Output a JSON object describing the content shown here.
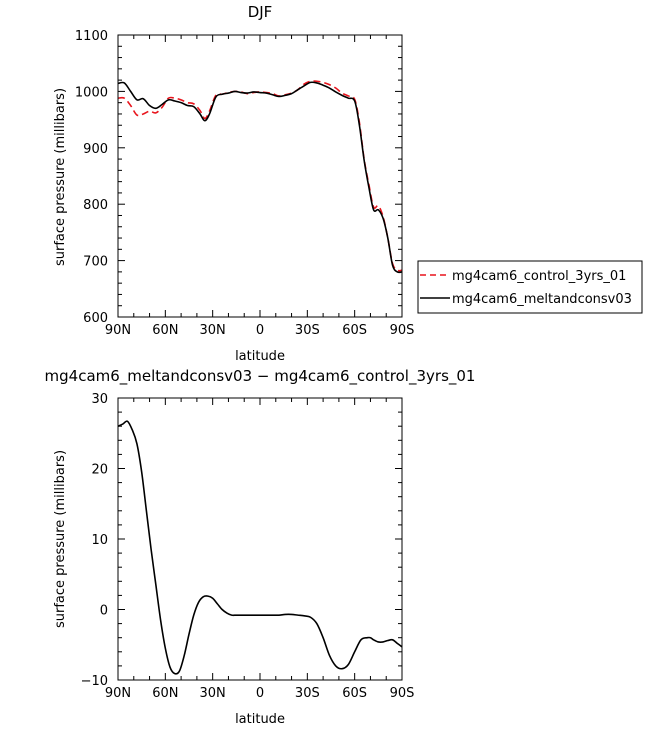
{
  "chart_data": [
    {
      "type": "line",
      "title": "DJF",
      "xlabel": "latitude",
      "ylabel": "surface pressure (millibars)",
      "xlim": [
        90,
        -90
      ],
      "ylim": [
        600,
        1100
      ],
      "xticks": [
        90,
        60,
        30,
        0,
        -30,
        -60,
        -90
      ],
      "xtick_labels": [
        "90N",
        "60N",
        "30N",
        "0",
        "30S",
        "60S",
        "90S"
      ],
      "yticks": [
        600,
        700,
        800,
        900,
        1000,
        1100
      ],
      "ytick_labels": [
        "600",
        "700",
        "800",
        "900",
        "1000",
        "1100"
      ],
      "legend": "right",
      "series": [
        {
          "name": "mg4cam6_control_3yrs_01",
          "color": "#e8141c",
          "dash": "dashed",
          "x": [
            90,
            86,
            82,
            78,
            74,
            70,
            66,
            62,
            58,
            54,
            50,
            46,
            42,
            38,
            35,
            32,
            28,
            24,
            20,
            16,
            12,
            8,
            4,
            0,
            -4,
            -8,
            -12,
            -16,
            -20,
            -24,
            -28,
            -32,
            -36,
            -40,
            -44,
            -48,
            -52,
            -56,
            -60,
            -63,
            -66,
            -69,
            -72,
            -75,
            -78,
            -81,
            -84,
            -87,
            -90
          ],
          "y": [
            988,
            988,
            975,
            958,
            960,
            965,
            962,
            972,
            988,
            988,
            985,
            980,
            978,
            966,
            952,
            965,
            993,
            995,
            998,
            1000,
            999,
            996,
            998,
            999,
            998,
            996,
            992,
            994,
            997,
            1003,
            1013,
            1018,
            1018,
            1016,
            1012,
            1006,
            997,
            992,
            986,
            945,
            880,
            835,
            795,
            797,
            778,
            740,
            695,
            683,
            683
          ]
        },
        {
          "name": "mg4cam6_meltandconsv03",
          "color": "#000000",
          "dash": "solid",
          "x": [
            90,
            86,
            82,
            78,
            74,
            70,
            66,
            62,
            58,
            54,
            50,
            46,
            42,
            38,
            35,
            32,
            28,
            24,
            20,
            16,
            12,
            8,
            4,
            0,
            -4,
            -8,
            -12,
            -16,
            -20,
            -24,
            -28,
            -32,
            -36,
            -40,
            -44,
            -48,
            -52,
            -56,
            -60,
            -63,
            -66,
            -69,
            -72,
            -75,
            -78,
            -81,
            -84,
            -87,
            -90
          ],
          "y": [
            1014,
            1015,
            1000,
            985,
            987,
            975,
            970,
            977,
            985,
            983,
            980,
            975,
            973,
            960,
            948,
            960,
            990,
            995,
            997,
            1000,
            998,
            997,
            999,
            998,
            997,
            994,
            991,
            993,
            996,
            1003,
            1010,
            1016,
            1015,
            1011,
            1006,
            999,
            993,
            988,
            983,
            940,
            878,
            830,
            790,
            790,
            775,
            740,
            692,
            680,
            680
          ]
        }
      ]
    },
    {
      "type": "line",
      "title": "mg4cam6_meltandconsv03 − mg4cam6_control_3yrs_01",
      "xlabel": "latitude",
      "ylabel": "surface pressure (millibars)",
      "xlim": [
        90,
        -90
      ],
      "ylim": [
        -10,
        30
      ],
      "xticks": [
        90,
        60,
        30,
        0,
        -30,
        -60,
        -90
      ],
      "xtick_labels": [
        "90N",
        "60N",
        "30N",
        "0",
        "30S",
        "60S",
        "90S"
      ],
      "yticks": [
        -10,
        0,
        10,
        20,
        30
      ],
      "ytick_labels": [
        "−10",
        "0",
        "10",
        "20",
        "30"
      ],
      "series": [
        {
          "color": "#000000",
          "dash": "solid",
          "x": [
            90,
            87,
            84,
            81,
            78,
            75,
            72,
            69,
            66,
            63,
            60,
            57,
            54,
            51,
            48,
            45,
            42,
            39,
            36,
            33,
            30,
            27,
            24,
            21,
            18,
            15,
            12,
            9,
            6,
            3,
            0,
            -4,
            -8,
            -12,
            -16,
            -20,
            -24,
            -28,
            -32,
            -36,
            -40,
            -44,
            -48,
            -52,
            -56,
            -60,
            -64,
            -68,
            -70,
            -72,
            -75,
            -78,
            -81,
            -84,
            -87,
            -90
          ],
          "y": [
            26.0,
            26.3,
            26.7,
            25.5,
            23.5,
            19.5,
            14.0,
            8.5,
            3.5,
            -1.5,
            -5.5,
            -8.2,
            -9.1,
            -8.7,
            -6.5,
            -3.5,
            -0.8,
            1.0,
            1.8,
            1.9,
            1.6,
            0.8,
            0.0,
            -0.5,
            -0.8,
            -0.8,
            -0.8,
            -0.8,
            -0.8,
            -0.8,
            -0.8,
            -0.8,
            -0.8,
            -0.8,
            -0.7,
            -0.7,
            -0.8,
            -0.9,
            -1.1,
            -2.0,
            -4.0,
            -6.5,
            -8.0,
            -8.4,
            -7.8,
            -6.0,
            -4.3,
            -4.0,
            -4.0,
            -4.3,
            -4.6,
            -4.6,
            -4.4,
            -4.3,
            -4.8,
            -5.3
          ]
        }
      ]
    }
  ]
}
